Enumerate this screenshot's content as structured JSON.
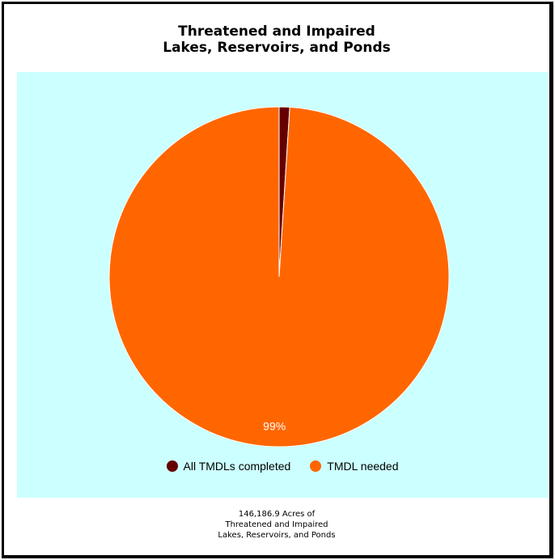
{
  "chart_data": {
    "type": "pie",
    "title_lines": [
      "Threatened and Impaired",
      "Lakes, Reservoirs, and Ponds"
    ],
    "slices": [
      {
        "name": "All TMDLs completed",
        "value": 1,
        "color": "#660000"
      },
      {
        "name": "TMDL needed",
        "value": 99,
        "color": "#ff6600"
      }
    ],
    "data_labels": [
      "",
      "99%"
    ],
    "legend_position": "bottom",
    "background_color": "#ccffff"
  },
  "caption_lines": [
    "146,186.9 Acres of",
    "Threatened and Impaired",
    "Lakes, Reservoirs, and Ponds"
  ]
}
